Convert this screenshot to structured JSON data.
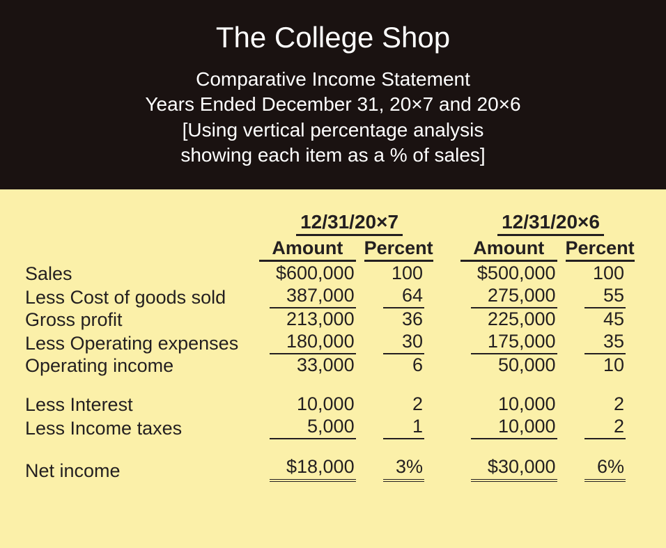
{
  "colors": {
    "header_bg": "#1a1211",
    "header_text": "#ffffff",
    "body_bg": "#fbf0a9",
    "body_text": "#231f20",
    "rule_color": "#231f20"
  },
  "typography": {
    "title_fontsize_pt": 32,
    "subtitle_fontsize_pt": 21,
    "body_fontsize_pt": 20,
    "header_font_weight": 400,
    "colhdr_font_weight": 700
  },
  "header": {
    "title": "The College Shop",
    "line1": "Comparative Income Statement",
    "line2": "Years Ended December 31, 20×7 and 20×6",
    "line3": "[Using vertical percentage analysis",
    "line4": "showing each item as a % of sales]"
  },
  "table": {
    "type": "table",
    "year1": "12/31/20×7",
    "year2": "12/31/20×6",
    "col_amount": "Amount",
    "col_percent": "Percent",
    "rows": [
      {
        "label": "Sales",
        "a1": "$600,000",
        "p1": "100",
        "a2": "$500,000",
        "p2": "100",
        "u": ""
      },
      {
        "label": "Less Cost of goods sold",
        "a1": "387,000",
        "p1": "64",
        "a2": "275,000",
        "p2": "55",
        "u": "single"
      },
      {
        "label": "Gross profit",
        "a1": "213,000",
        "p1": "36",
        "a2": "225,000",
        "p2": "45",
        "u": ""
      },
      {
        "label": "Less Operating expenses",
        "a1": "180,000",
        "p1": "30",
        "a2": "175,000",
        "p2": "35",
        "u": "single"
      },
      {
        "label": "Operating income",
        "a1": "33,000",
        "p1": "6",
        "a2": "50,000",
        "p2": "10",
        "u": ""
      },
      {
        "spacer": true
      },
      {
        "label": "Less Interest",
        "a1": "10,000",
        "p1": "2",
        "a2": "10,000",
        "p2": "2",
        "u": ""
      },
      {
        "label": "Less Income taxes",
        "a1": "5,000",
        "p1": "1",
        "a2": "10,000",
        "p2": "2",
        "u": "single"
      },
      {
        "spacer": true
      },
      {
        "label": "Net income",
        "a1": "$18,000",
        "p1": "3%",
        "a2": "$30,000",
        "p2": "6%",
        "u": "double"
      }
    ]
  }
}
